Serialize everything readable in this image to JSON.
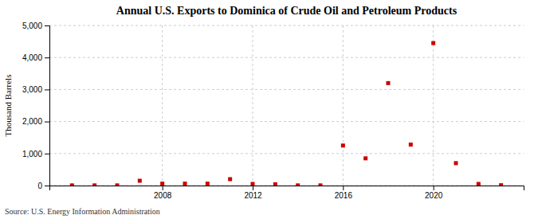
{
  "chart_data": {
    "type": "scatter",
    "title": "Annual U.S. Exports to Dominica of Crude Oil and Petroleum Products",
    "ylabel": "Thousand Barrels",
    "annotations": [
      "Source: U.S. Energy Information Administration"
    ],
    "x": [
      2004,
      2005,
      2006,
      2007,
      2008,
      2009,
      2010,
      2011,
      2012,
      2013,
      2014,
      2015,
      2016,
      2017,
      2018,
      2019,
      2020,
      2021,
      2022,
      2023
    ],
    "values": [
      5,
      5,
      5,
      150,
      60,
      60,
      60,
      200,
      50,
      40,
      5,
      5,
      1250,
      850,
      3200,
      1280,
      4450,
      700,
      50,
      10
    ],
    "color": "#cc0000",
    "marker": "square",
    "xlim": [
      2003,
      2024
    ],
    "xticks": [
      2008,
      2012,
      2016,
      2020
    ],
    "ylim": [
      0,
      5000
    ],
    "yticks": [
      0,
      {
        "value": 1000,
        "label": "1,000"
      },
      {
        "value": 2000,
        "label": "2,000"
      },
      {
        "value": 3000,
        "label": "3,000"
      },
      {
        "value": 4000,
        "label": "4,000"
      },
      {
        "value": 5000,
        "label": "5,000"
      }
    ],
    "grid": true
  }
}
